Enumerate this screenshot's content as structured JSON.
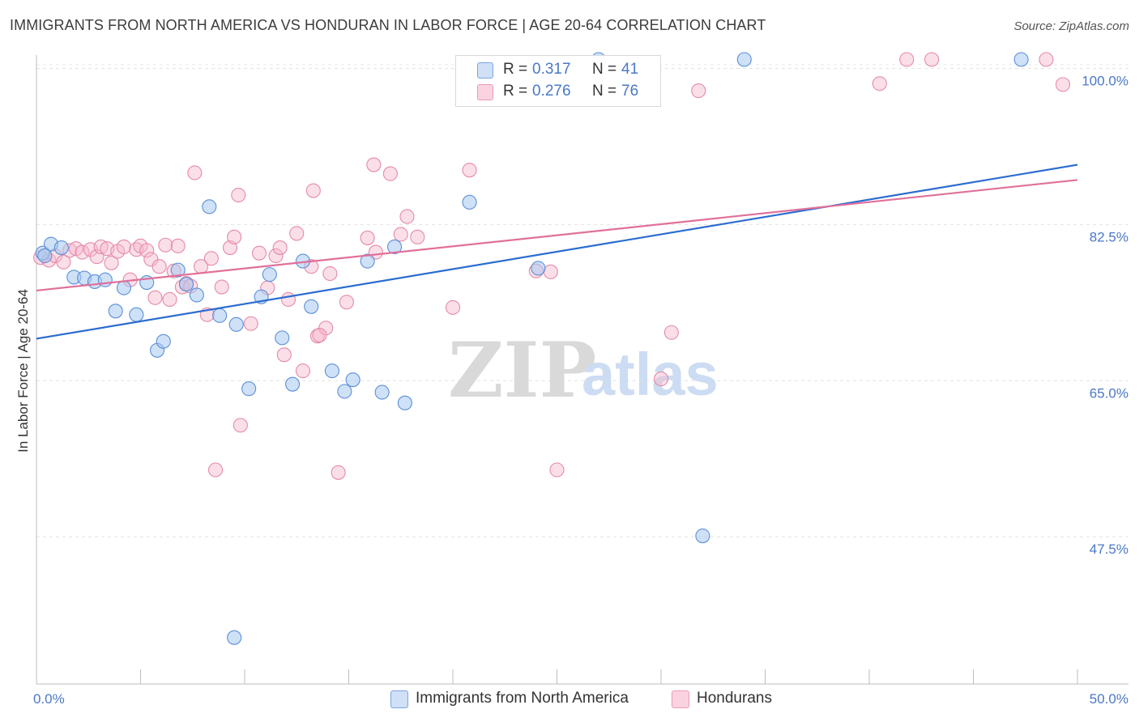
{
  "header": {
    "title": "IMMIGRANTS FROM NORTH AMERICA VS HONDURAN IN LABOR FORCE | AGE 20-64 CORRELATION CHART",
    "source": "Source: ZipAtlas.com"
  },
  "watermark": {
    "zip": "ZIP",
    "atlas": "atlas"
  },
  "legend": {
    "r_label": "R =",
    "n_label": "N =",
    "rows": [
      {
        "r": "0.317",
        "n": "41",
        "color": "#a8c8f0"
      },
      {
        "r": "0.276",
        "n": "76",
        "color": "#f6b8cb"
      }
    ]
  },
  "bottom_legend": {
    "items": [
      {
        "label": "Immigrants from North America",
        "color": "#a8c8f0"
      },
      {
        "label": "Hondurans",
        "color": "#f6b8cb"
      }
    ]
  },
  "chart_data": {
    "type": "scatter",
    "title": "IMMIGRANTS FROM NORTH AMERICA VS HONDURAN IN LABOR FORCE | AGE 20-64 CORRELATION CHART",
    "xlabel": "",
    "ylabel": "In Labor Force | Age 20-64",
    "xlim": [
      0,
      50
    ],
    "ylim": [
      31,
      101.5
    ],
    "x_tick_labels": [
      {
        "value": 0,
        "label": "0.0%"
      },
      {
        "value": 50,
        "label": "50.0%"
      }
    ],
    "y_tick_labels": [
      {
        "value": 100,
        "label": "100.0%"
      },
      {
        "value": 82.5,
        "label": "82.5%"
      },
      {
        "value": 65,
        "label": "65.0%"
      },
      {
        "value": 47.5,
        "label": "47.5%"
      }
    ],
    "grid": true,
    "legend_position": "top-center",
    "series": [
      {
        "name": "Immigrants from North America",
        "color": "#a8c8f0",
        "stroke": "#4a7fd0",
        "trend_color": "#2b6cd0",
        "trend": {
          "x": [
            0,
            50
          ],
          "y": [
            69.7,
            89.2
          ]
        },
        "points": [
          [
            0.3,
            79.3
          ],
          [
            0.7,
            80.3
          ],
          [
            1.2,
            79.9
          ],
          [
            1.8,
            76.6
          ],
          [
            2.3,
            76.5
          ],
          [
            2.8,
            76.1
          ],
          [
            3.3,
            76.3
          ],
          [
            3.8,
            72.8
          ],
          [
            4.2,
            75.4
          ],
          [
            4.8,
            72.4
          ],
          [
            5.3,
            76.0
          ],
          [
            5.8,
            68.4
          ],
          [
            6.1,
            69.4
          ],
          [
            6.8,
            77.4
          ],
          [
            7.2,
            75.8
          ],
          [
            7.7,
            74.6
          ],
          [
            8.3,
            84.5
          ],
          [
            8.8,
            72.3
          ],
          [
            9.6,
            71.3
          ],
          [
            9.5,
            36.2
          ],
          [
            10.2,
            64.1
          ],
          [
            10.8,
            74.4
          ],
          [
            11.2,
            76.9
          ],
          [
            11.8,
            69.8
          ],
          [
            12.3,
            64.6
          ],
          [
            12.8,
            78.4
          ],
          [
            13.2,
            73.3
          ],
          [
            14.2,
            66.1
          ],
          [
            14.8,
            63.8
          ],
          [
            15.2,
            65.1
          ],
          [
            15.9,
            78.4
          ],
          [
            16.6,
            63.7
          ],
          [
            17.2,
            80.0
          ],
          [
            17.7,
            62.5
          ],
          [
            20.8,
            85.0
          ],
          [
            24.1,
            77.6
          ],
          [
            27.0,
            101.0
          ],
          [
            32.0,
            47.6
          ],
          [
            34.0,
            101.0
          ],
          [
            47.3,
            101.0
          ],
          [
            0.4,
            79.0
          ]
        ]
      },
      {
        "name": "Hondurans",
        "color": "#f6b8cb",
        "stroke": "#e07898",
        "trend_color": "#e0709a",
        "trend": {
          "x": [
            0,
            50
          ],
          "y": [
            75.1,
            87.5
          ]
        },
        "points": [
          [
            0.2,
            78.8
          ],
          [
            0.6,
            78.5
          ],
          [
            0.9,
            79.0
          ],
          [
            1.3,
            78.3
          ],
          [
            1.6,
            79.6
          ],
          [
            1.9,
            79.8
          ],
          [
            2.2,
            79.4
          ],
          [
            2.6,
            79.7
          ],
          [
            2.9,
            78.9
          ],
          [
            3.1,
            80.0
          ],
          [
            3.4,
            79.8
          ],
          [
            3.6,
            78.2
          ],
          [
            3.9,
            79.5
          ],
          [
            4.2,
            80.0
          ],
          [
            4.5,
            76.3
          ],
          [
            4.8,
            79.7
          ],
          [
            5.0,
            80.1
          ],
          [
            5.3,
            79.6
          ],
          [
            5.5,
            78.6
          ],
          [
            5.7,
            74.3
          ],
          [
            5.9,
            77.8
          ],
          [
            6.2,
            80.2
          ],
          [
            6.4,
            74.1
          ],
          [
            6.6,
            77.3
          ],
          [
            6.8,
            80.1
          ],
          [
            7.0,
            75.5
          ],
          [
            7.2,
            75.9
          ],
          [
            7.4,
            75.6
          ],
          [
            7.6,
            88.3
          ],
          [
            7.9,
            77.8
          ],
          [
            8.2,
            72.4
          ],
          [
            8.4,
            78.7
          ],
          [
            8.6,
            55.0
          ],
          [
            8.9,
            75.5
          ],
          [
            9.3,
            79.9
          ],
          [
            9.5,
            81.1
          ],
          [
            9.7,
            85.8
          ],
          [
            9.8,
            60.0
          ],
          [
            10.3,
            71.4
          ],
          [
            10.7,
            79.3
          ],
          [
            11.1,
            75.4
          ],
          [
            11.5,
            79.0
          ],
          [
            11.7,
            79.9
          ],
          [
            11.9,
            67.9
          ],
          [
            12.1,
            74.1
          ],
          [
            12.5,
            81.5
          ],
          [
            12.8,
            66.1
          ],
          [
            13.2,
            77.8
          ],
          [
            13.3,
            86.3
          ],
          [
            13.5,
            70.0
          ],
          [
            13.9,
            70.9
          ],
          [
            13.6,
            70.1
          ],
          [
            14.1,
            77.0
          ],
          [
            14.5,
            54.7
          ],
          [
            14.9,
            73.8
          ],
          [
            15.9,
            81.0
          ],
          [
            16.2,
            89.2
          ],
          [
            17.0,
            88.2
          ],
          [
            17.5,
            81.4
          ],
          [
            17.8,
            83.4
          ],
          [
            18.3,
            81.1
          ],
          [
            20.0,
            73.2
          ],
          [
            20.8,
            88.6
          ],
          [
            24.0,
            77.3
          ],
          [
            24.7,
            77.2
          ],
          [
            25.0,
            55.0
          ],
          [
            27.8,
            98.2
          ],
          [
            30.0,
            65.2
          ],
          [
            30.5,
            70.4
          ],
          [
            31.8,
            97.5
          ],
          [
            40.5,
            98.3
          ],
          [
            41.8,
            101.0
          ],
          [
            43.0,
            101.0
          ],
          [
            48.5,
            101.0
          ],
          [
            49.3,
            98.2
          ],
          [
            16.3,
            79.4
          ]
        ]
      }
    ]
  }
}
